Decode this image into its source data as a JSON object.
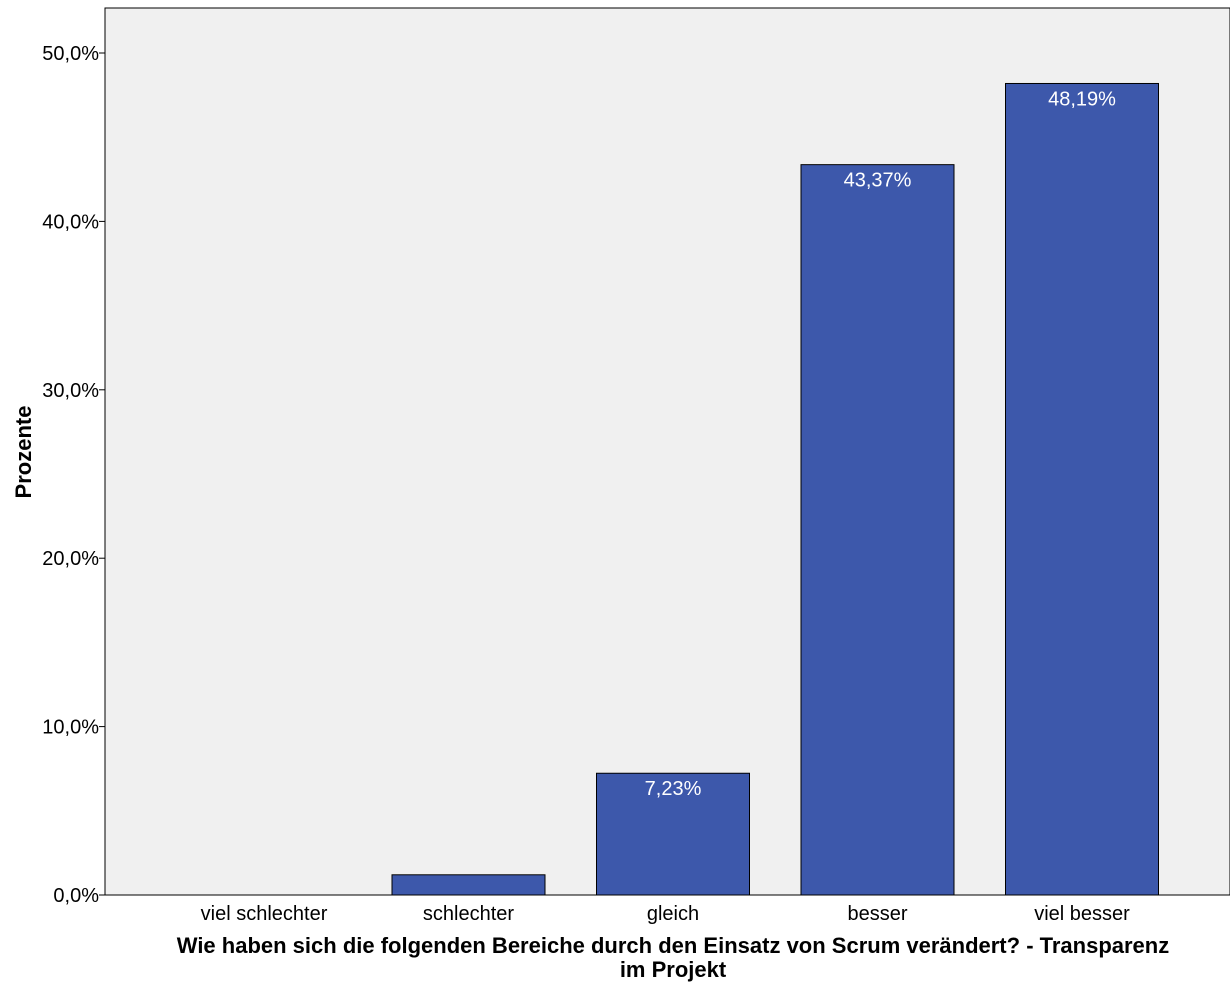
{
  "chart_data": {
    "type": "bar",
    "categories": [
      "viel schlechter",
      "schlechter",
      "gleich",
      "besser",
      "viel besser"
    ],
    "values": [
      0,
      1.2,
      7.23,
      43.37,
      48.19
    ],
    "data_labels": [
      "",
      "",
      "7,23%",
      "43,37%",
      "48,19%"
    ],
    "y_ticks": [
      0,
      10,
      20,
      30,
      40,
      50
    ],
    "y_tick_labels": [
      "0,0%",
      "10,0%",
      "20,0%",
      "30,0%",
      "40,0%",
      "50,0%"
    ],
    "ylim": [
      0,
      52.6
    ],
    "ylabel": "Prozente",
    "xlabel_line1": "Wie haben sich die folgenden Bereiche durch den Einsatz von Scrum verändert? - Transparenz",
    "xlabel_line2": "im Projekt",
    "grid": false,
    "colors": {
      "bar": "#3d58ab",
      "plot_bg": "#f0f0f0",
      "bar_outline": "#000000"
    }
  }
}
